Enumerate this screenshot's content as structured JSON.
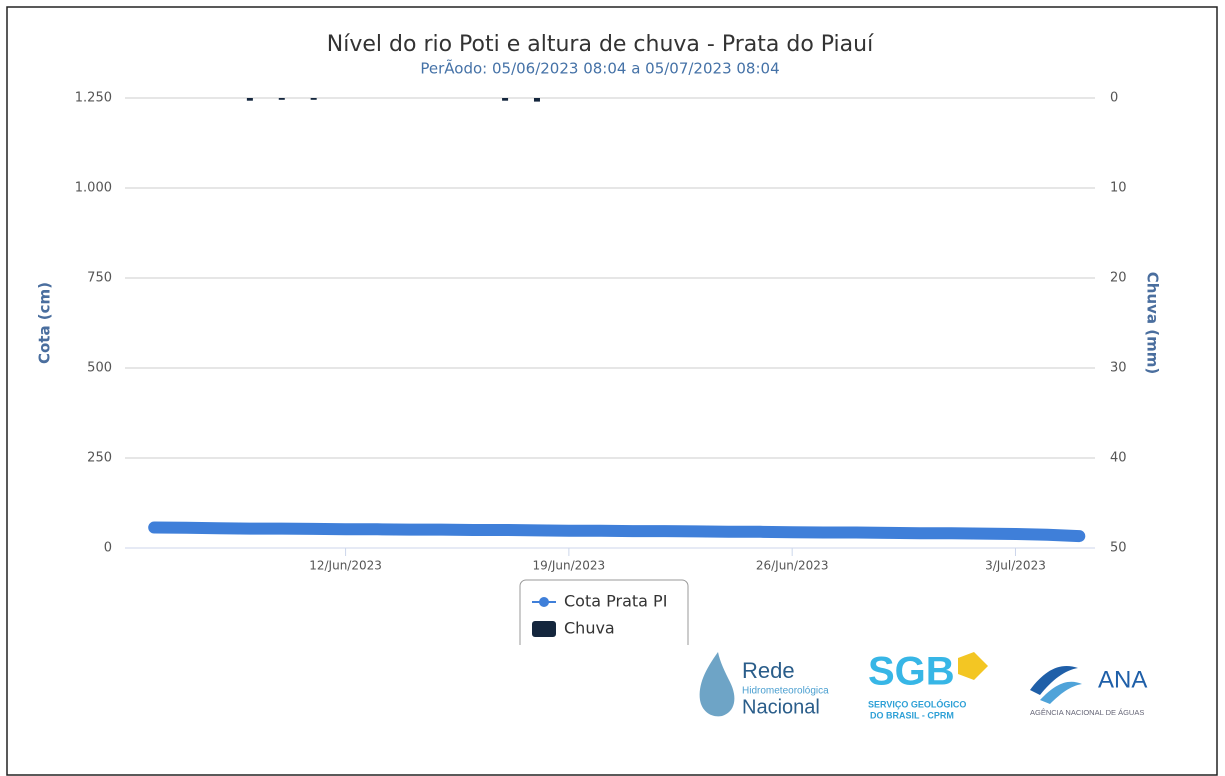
{
  "chart_data": {
    "type": "line",
    "title": "Nível do rio Poti e altura de chuva - Prata do Piauí",
    "subtitle": "PerÃodo: 05/06/2023 08:04 a 05/07/2023 08:04",
    "y_label": "Cota (cm)",
    "y2_label": "Chuva (mm)",
    "xlim": [
      "2023-06-05 08:04",
      "2023-07-05 08:04"
    ],
    "xticks": [
      {
        "value": "2023-06-12",
        "label": "12/Jun/2023"
      },
      {
        "value": "2023-06-19",
        "label": "19/Jun/2023"
      },
      {
        "value": "2023-06-26",
        "label": "26/Jun/2023"
      },
      {
        "value": "2023-07-03",
        "label": "3/Jul/2023"
      }
    ],
    "ylim": [
      0,
      1250
    ],
    "yticks": [
      0,
      250,
      500,
      750,
      {
        "value": 1000,
        "label": "1.000"
      },
      {
        "value": 1250,
        "label": "1.250"
      }
    ],
    "y2lim": [
      0,
      50
    ],
    "y2ticks": [
      0,
      10,
      20,
      30,
      40,
      50
    ],
    "y2_reversed": true,
    "grid": true,
    "legend": "bottom",
    "series": [
      {
        "name": "Cota Prata PI",
        "type": "line",
        "color": "#3f7fd9",
        "x": [
          "2023-06-06",
          "2023-06-07",
          "2023-06-08",
          "2023-06-09",
          "2023-06-10",
          "2023-06-11",
          "2023-06-12",
          "2023-06-13",
          "2023-06-14",
          "2023-06-15",
          "2023-06-16",
          "2023-06-17",
          "2023-06-18",
          "2023-06-19",
          "2023-06-20",
          "2023-06-21",
          "2023-06-22",
          "2023-06-23",
          "2023-06-24",
          "2023-06-25",
          "2023-06-26",
          "2023-06-27",
          "2023-06-28",
          "2023-06-29",
          "2023-06-30",
          "2023-07-01",
          "2023-07-02",
          "2023-07-03",
          "2023-07-04",
          "2023-07-05"
        ],
        "values": [
          57,
          56,
          55,
          54,
          54,
          53,
          52,
          52,
          51,
          51,
          50,
          50,
          49,
          48,
          48,
          47,
          47,
          46,
          45,
          45,
          44,
          43,
          43,
          42,
          41,
          41,
          40,
          39,
          37,
          33
        ]
      },
      {
        "name": "Chuva",
        "type": "bar",
        "color": "#14263d",
        "axis": "y2",
        "x": [
          "2023-06-09",
          "2023-06-10",
          "2023-06-11",
          "2023-06-17",
          "2023-06-18"
        ],
        "values": [
          0.3,
          0.2,
          0.2,
          0.3,
          0.4
        ]
      }
    ]
  },
  "logos": {
    "rede": [
      "Rede",
      "Hidrometeorológica",
      "Nacional"
    ],
    "sgb": [
      "SGB",
      "SERVIÇO GEOLÓGICO",
      "DO BRASIL - CPRM"
    ],
    "ana": [
      "ANA",
      "AGÊNCIA NACIONAL DE ÁGUAS"
    ]
  }
}
